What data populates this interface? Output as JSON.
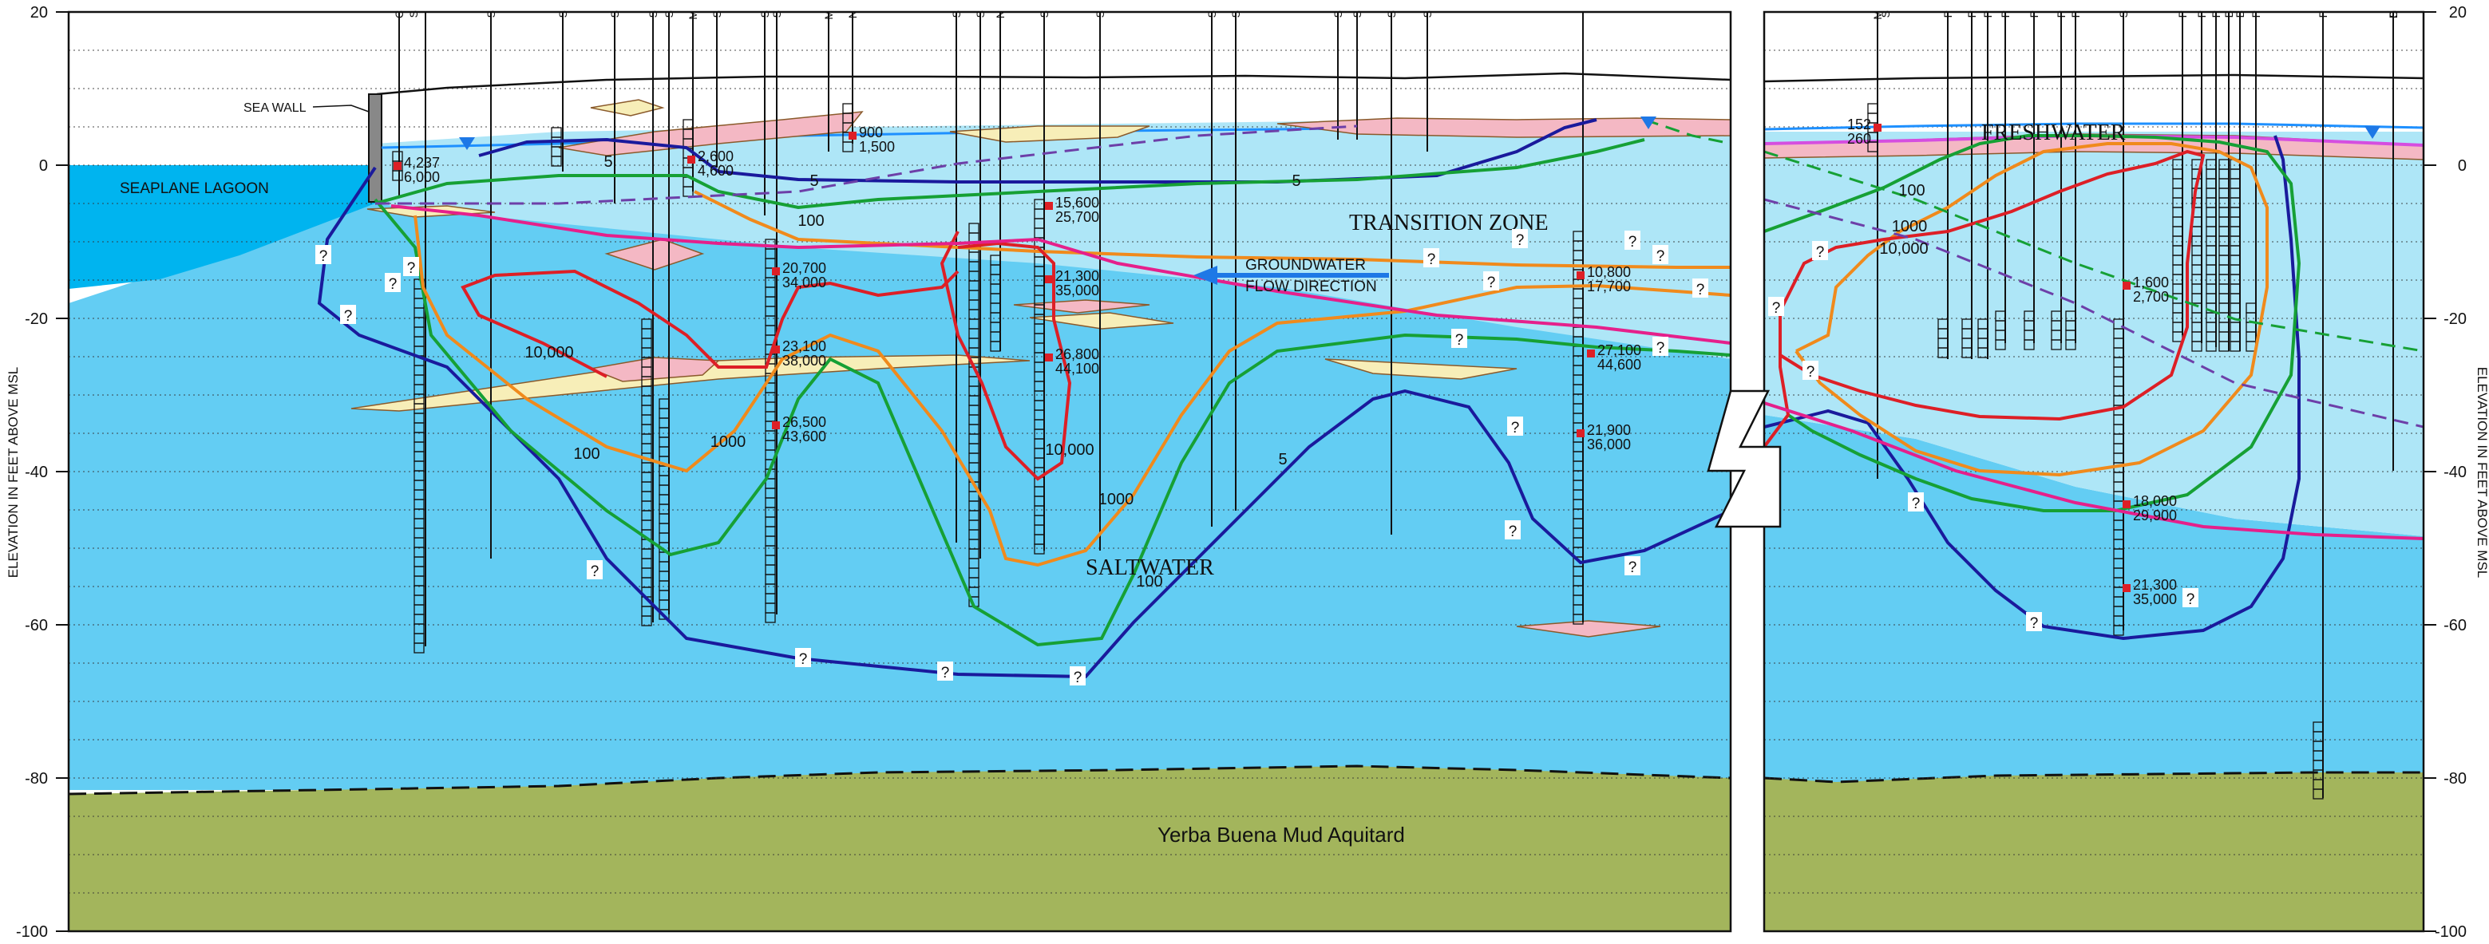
{
  "axis": {
    "left_label": "ELEVATION IN FEET ABOVE MSL",
    "right_label": "ELEVATION IN FEET ABOVE MSL",
    "ticks": [
      "20",
      "0",
      "-20",
      "-40",
      "-60",
      "-80",
      "-100"
    ],
    "tick_values": [
      20,
      0,
      -20,
      -40,
      -60,
      -80,
      -100
    ]
  },
  "labels": {
    "sea_wall": "SEA WALL",
    "seaplane_lagoon": "SEAPLANE LAGOON",
    "transition_zone": "TRANSITION ZONE",
    "groundwater_line1": "GROUNDWATER",
    "groundwater_line2": "FLOW DIRECTION",
    "saltwater": "SALTWATER",
    "freshwater": "FRESHWATER",
    "aquitard": "Yerba Buena Mud Aquitard"
  },
  "well_headers": [
    "C",
    "S",
    "S",
    "S",
    "S",
    "S",
    "S",
    "M",
    "S",
    "S",
    "S",
    "M",
    "N",
    "S",
    "S",
    "N",
    "S",
    "S",
    "S",
    "S",
    "S",
    "S",
    "S",
    "S",
    "M",
    "S",
    "P",
    "P",
    "P",
    "P",
    "P",
    "P",
    "P",
    "S",
    "P",
    "P",
    "P",
    "B",
    "B",
    "P",
    "P",
    "D",
    "S"
  ],
  "contour_labels": [
    "5",
    "5",
    "5",
    "5",
    "100",
    "100",
    "100",
    "100",
    "1000",
    "1000",
    "1000",
    "1000",
    "10,000",
    "10,000",
    "10,000",
    "?"
  ],
  "concentrations": [
    {
      "a": "4,237",
      "b": "6,000"
    },
    {
      "a": "2,600",
      "b": "4,600"
    },
    {
      "a": "900",
      "b": "1,500"
    },
    {
      "a": "20,700",
      "b": "34,000"
    },
    {
      "a": "23,100",
      "b": "38,000"
    },
    {
      "a": "26,500",
      "b": "43,600"
    },
    {
      "a": "15,600",
      "b": "25,700"
    },
    {
      "a": "21,300",
      "b": "35,000"
    },
    {
      "a": "26,800",
      "b": "44,100"
    },
    {
      "a": "10,800",
      "b": "17,700"
    },
    {
      "a": "27,100",
      "b": "44,600"
    },
    {
      "a": "21,900",
      "b": "36,000"
    },
    {
      "a": "152",
      "b": "260"
    },
    {
      "a": "1,600",
      "b": "2,700"
    },
    {
      "a": "18,000",
      "b": "29,900"
    },
    {
      "a": "21,300",
      "b": "35,000"
    }
  ],
  "colors": {
    "lagoon": "#00b4ef",
    "transition": "#aee6f7",
    "saltwater": "#63cdf3",
    "aquitard": "#a3b55c",
    "contour_5": "#1a1a9c",
    "contour_100": "#16a035",
    "contour_1000": "#f08a1c",
    "contour_10000": "#dd1f26",
    "interface": "#e5208b",
    "fill_pink": "#f4b8c4",
    "fill_yellow": "#f7eeb8"
  }
}
